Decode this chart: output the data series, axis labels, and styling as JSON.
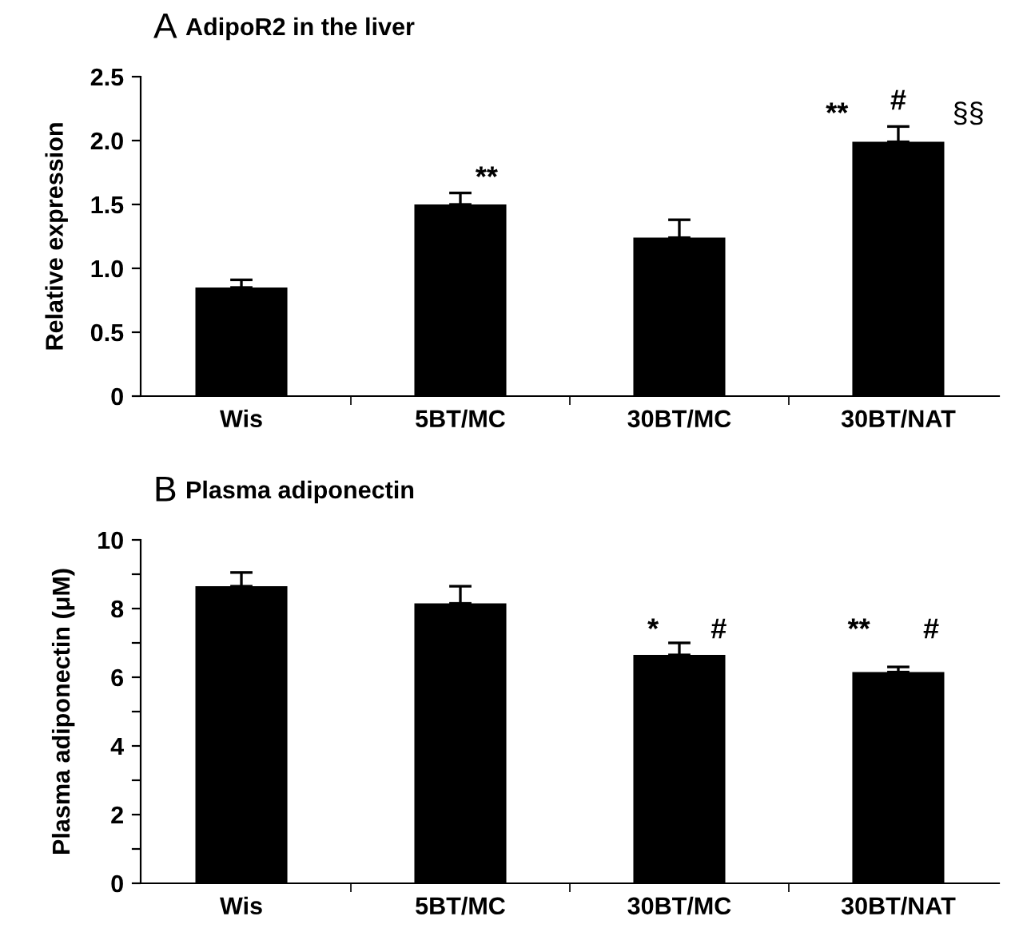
{
  "chart_data": [
    {
      "type": "bar",
      "title": "AdipoR2 in the liver",
      "ylabel": "Relative expression",
      "categories": [
        "Wis",
        "5BT/MC",
        "30BT/MC",
        "30BT/NAT"
      ],
      "series": [
        {
          "color": "#000000",
          "values": [
            0.85,
            1.5,
            1.24,
            1.99
          ],
          "errors": [
            [
              0.85,
              0.91
            ],
            [
              1.5,
              1.59
            ],
            [
              1.24,
              1.38
            ],
            [
              1.99,
              2.11
            ]
          ]
        }
      ],
      "ylim": [
        0,
        2.5
      ],
      "yticks": [
        0,
        {
          "value": 0.5,
          "label": "0.5"
        },
        {
          "value": 1,
          "label": "1.0"
        },
        {
          "value": 1.5,
          "label": "1.5"
        },
        {
          "value": 2,
          "label": "2.0"
        },
        {
          "value": 2.5,
          "label": "2.5"
        }
      ],
      "grid": false,
      "legend": false,
      "annotations": [
        "A",
        "**",
        "**",
        "#",
        "§§"
      ]
    },
    {
      "type": "bar",
      "title": "Plasma adiponectin",
      "ylabel": "Plasma adiponectin (μM)",
      "categories": [
        "Wis",
        "5BT/MC",
        "30BT/MC",
        "30BT/NAT"
      ],
      "series": [
        {
          "color": "#000000",
          "values": [
            8.65,
            8.15,
            6.65,
            6.15
          ],
          "errors": [
            [
              8.65,
              9.05
            ],
            [
              8.15,
              8.65
            ],
            [
              6.65,
              7.0
            ],
            [
              6.15,
              6.3
            ]
          ]
        }
      ],
      "ylim": [
        0,
        10
      ],
      "yticks": [
        0,
        {
          "value": 1,
          "label": null
        },
        2,
        {
          "value": 3,
          "label": null
        },
        4,
        {
          "value": 5,
          "label": null
        },
        6,
        {
          "value": 7,
          "label": null
        },
        8,
        {
          "value": 9,
          "label": null
        },
        10
      ],
      "grid": false,
      "legend": false,
      "annotations": [
        "B",
        "*",
        "#",
        "**",
        "#"
      ]
    }
  ]
}
